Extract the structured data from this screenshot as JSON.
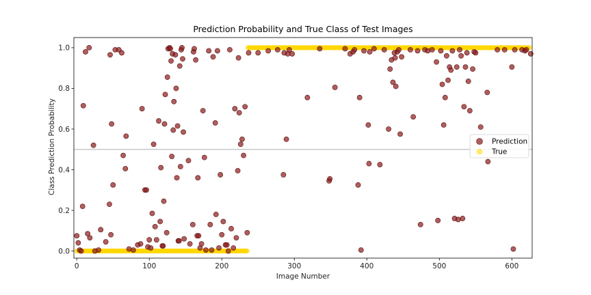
{
  "chart_data": {
    "type": "scatter",
    "title": "Prediction Probability and True Class of Test Images",
    "xlabel": "Image Number",
    "ylabel": "Class Prediction Probability",
    "xlim": [
      -4,
      628
    ],
    "ylim": [
      -0.035,
      1.05
    ],
    "x_ticks": [
      0,
      100,
      200,
      300,
      400,
      500,
      600
    ],
    "y_ticks": [
      0.0,
      0.2,
      0.4,
      0.6,
      0.8,
      1.0
    ],
    "y_tick_labels": [
      "0.0",
      "0.2",
      "0.4",
      "0.6",
      "0.8",
      "1.0"
    ],
    "threshold_line": 0.5,
    "legend_position": "right",
    "colors": {
      "prediction": "#8b1a1a",
      "true": "#ffd700",
      "threshold": "#c8c8c8"
    },
    "series": [
      {
        "name": "Prediction",
        "points": [
          [
            0,
            0.075
          ],
          [
            2,
            0.04
          ],
          [
            4,
            0.005
          ],
          [
            6,
            0.0
          ],
          [
            8,
            0.22
          ],
          [
            9,
            0.715
          ],
          [
            12,
            0.98
          ],
          [
            15,
            0.085
          ],
          [
            17,
            1.0
          ],
          [
            18,
            0.065
          ],
          [
            23,
            0.52
          ],
          [
            25,
            0.0
          ],
          [
            30,
            0.005
          ],
          [
            33,
            0.105
          ],
          [
            40,
            0.045
          ],
          [
            45,
            0.23
          ],
          [
            46,
            0.965
          ],
          [
            47,
            0.08
          ],
          [
            48,
            0.625
          ],
          [
            50,
            0.325
          ],
          [
            53,
            0.99
          ],
          [
            58,
            0.99
          ],
          [
            62,
            0.975
          ],
          [
            64,
            0.47
          ],
          [
            67,
            0.405
          ],
          [
            68,
            0.565
          ],
          [
            72,
            0.01
          ],
          [
            78,
            0.005
          ],
          [
            84,
            0.03
          ],
          [
            88,
            0.035
          ],
          [
            90,
            0.7
          ],
          [
            94,
            0.3
          ],
          [
            96,
            0.3
          ],
          [
            98,
            0.02
          ],
          [
            100,
            0.055
          ],
          [
            102,
            0.015
          ],
          [
            104,
            0.185
          ],
          [
            106,
            0.525
          ],
          [
            108,
            0.12
          ],
          [
            110,
            0.055
          ],
          [
            113,
            0.64
          ],
          [
            115,
            0.145
          ],
          [
            116,
            0.41
          ],
          [
            118,
            0.025
          ],
          [
            119,
            0.025
          ],
          [
            120,
            0.245
          ],
          [
            121,
            0.625
          ],
          [
            122,
            0.77
          ],
          [
            124,
            0.09
          ],
          [
            125,
            0.855
          ],
          [
            126,
            0.995
          ],
          [
            128,
            1.0
          ],
          [
            129,
            0.995
          ],
          [
            130,
            0.935
          ],
          [
            131,
            0.465
          ],
          [
            132,
            0.97
          ],
          [
            133,
            0.595
          ],
          [
            134,
            0.735
          ],
          [
            136,
            0.965
          ],
          [
            137,
            0.8
          ],
          [
            138,
            0.36
          ],
          [
            139,
            0.615
          ],
          [
            140,
            0.05
          ],
          [
            141,
            0.05
          ],
          [
            142,
            0.91
          ],
          [
            143,
            0.415
          ],
          [
            144,
            0.99
          ],
          [
            145,
            1.0
          ],
          [
            146,
            0.945
          ],
          [
            147,
            0.585
          ],
          [
            148,
            0.06
          ],
          [
            154,
            0.445
          ],
          [
            156,
            0.035
          ],
          [
            160,
            0.13
          ],
          [
            161,
            0.98
          ],
          [
            162,
            0.995
          ],
          [
            164,
            0.94
          ],
          [
            166,
            0.075
          ],
          [
            167,
            0.36
          ],
          [
            168,
            0.075
          ],
          [
            170,
            0.015
          ],
          [
            172,
            0.035
          ],
          [
            174,
            0.69
          ],
          [
            176,
            0.46
          ],
          [
            178,
            0.005
          ],
          [
            182,
            0.985
          ],
          [
            184,
            0.13
          ],
          [
            186,
            0.005
          ],
          [
            188,
            0.955
          ],
          [
            191,
            0.63
          ],
          [
            192,
            0.18
          ],
          [
            194,
            0.985
          ],
          [
            196,
            0.015
          ],
          [
            198,
            0.375
          ],
          [
            200,
            0.08
          ],
          [
            202,
            0.145
          ],
          [
            205,
            0.03
          ],
          [
            207,
            0.03
          ],
          [
            209,
            0.0
          ],
          [
            211,
            0.99
          ],
          [
            213,
            0.11
          ],
          [
            216,
            0.015
          ],
          [
            218,
            0.7
          ],
          [
            220,
            0.065
          ],
          [
            222,
            0.395
          ],
          [
            223,
            0.95
          ],
          [
            224,
            0.68
          ],
          [
            226,
            0.525
          ],
          [
            228,
            0.55
          ],
          [
            230,
            0.47
          ],
          [
            232,
            0.71
          ],
          [
            235,
            0.09
          ],
          [
            237,
            0.975
          ],
          [
            250,
            0.975
          ],
          [
            264,
            0.985
          ],
          [
            277,
            0.99
          ],
          [
            285,
            0.375
          ],
          [
            286,
            0.975
          ],
          [
            289,
            0.55
          ],
          [
            291,
            0.97
          ],
          [
            293,
            0.99
          ],
          [
            297,
            0.97
          ],
          [
            318,
            0.755
          ],
          [
            335,
            0.995
          ],
          [
            348,
            0.345
          ],
          [
            349,
            0.355
          ],
          [
            356,
            0.805
          ],
          [
            370,
            0.995
          ],
          [
            377,
            0.97
          ],
          [
            381,
            0.98
          ],
          [
            383,
            0.99
          ],
          [
            388,
            0.325
          ],
          [
            390,
            0.755
          ],
          [
            392,
            0.005
          ],
          [
            396,
            0.985
          ],
          [
            402,
            0.62
          ],
          [
            403,
            0.43
          ],
          [
            404,
            0.98
          ],
          [
            410,
            0.995
          ],
          [
            418,
            0.425
          ],
          [
            424,
            0.99
          ],
          [
            430,
            0.6
          ],
          [
            432,
            0.895
          ],
          [
            434,
            0.94
          ],
          [
            436,
            0.83
          ],
          [
            438,
            0.975
          ],
          [
            439,
            0.95
          ],
          [
            440,
            0.81
          ],
          [
            442,
            0.98
          ],
          [
            444,
            0.99
          ],
          [
            446,
            0.575
          ],
          [
            448,
            0.955
          ],
          [
            460,
            0.99
          ],
          [
            464,
            0.66
          ],
          [
            470,
            0.985
          ],
          [
            474,
            0.13
          ],
          [
            480,
            0.99
          ],
          [
            484,
            0.985
          ],
          [
            490,
            0.99
          ],
          [
            496,
            0.93
          ],
          [
            498,
            0.15
          ],
          [
            502,
            0.985
          ],
          [
            504,
            0.82
          ],
          [
            506,
            0.62
          ],
          [
            508,
            0.755
          ],
          [
            510,
            0.96
          ],
          [
            512,
            0.84
          ],
          [
            514,
            0.905
          ],
          [
            516,
            0.89
          ],
          [
            518,
            0.985
          ],
          [
            521,
            0.16
          ],
          [
            524,
            0.905
          ],
          [
            526,
            0.155
          ],
          [
            528,
            0.99
          ],
          [
            530,
            0.96
          ],
          [
            532,
            0.16
          ],
          [
            534,
            0.71
          ],
          [
            536,
            0.905
          ],
          [
            538,
            0.975
          ],
          [
            540,
            0.835
          ],
          [
            542,
            0.69
          ],
          [
            546,
            0.895
          ],
          [
            548,
            0.98
          ],
          [
            550,
            0.975
          ],
          [
            557,
            0.61
          ],
          [
            566,
            0.78
          ],
          [
            567,
            0.44
          ],
          [
            580,
            0.99
          ],
          [
            590,
            0.99
          ],
          [
            600,
            0.905
          ],
          [
            602,
            0.01
          ],
          [
            604,
            0.99
          ],
          [
            614,
            0.99
          ],
          [
            618,
            0.985
          ],
          [
            620,
            0.99
          ],
          [
            626,
            0.97
          ]
        ]
      },
      {
        "name": "True",
        "class_0_range": [
          0,
          235
        ],
        "class_1_range": [
          236,
          624
        ]
      }
    ]
  }
}
